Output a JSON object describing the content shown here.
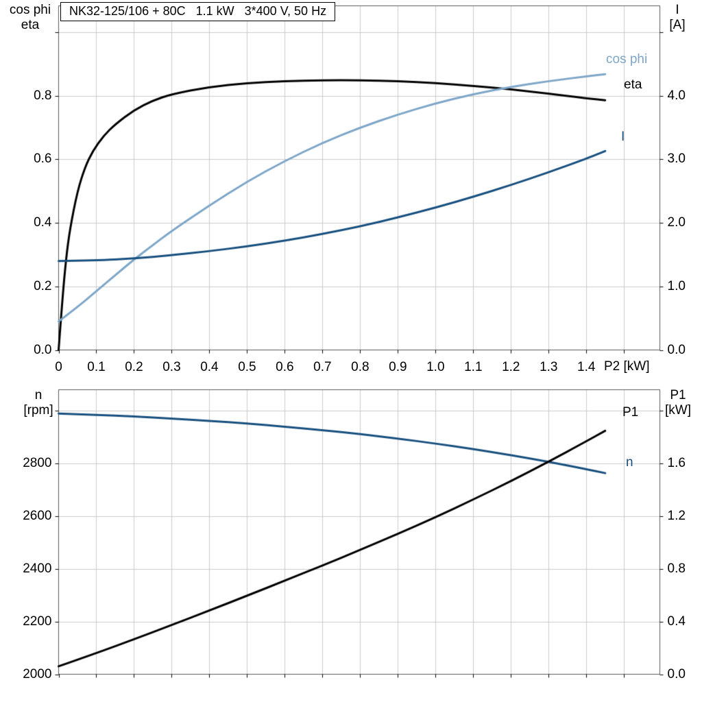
{
  "colors": {
    "background": "#ffffff",
    "grid": "#cccccc",
    "frame": "#595959",
    "tick": "#000000",
    "eta": "#000000",
    "cos_phi": "#7ea6c8",
    "current": "#174f7e",
    "speed": "#174f7e",
    "p1": "#000000"
  },
  "chart_data": [
    {
      "id": "top",
      "type": "line",
      "title": "NK32-125/106 + 80C   1.1 kW   3*400 V, 50 Hz",
      "x_axis": {
        "label": "P2 [kW]",
        "min": 0,
        "max": 1.595,
        "tick_values": [
          0,
          0.1,
          0.2,
          0.3,
          0.4,
          0.5,
          0.6,
          0.7,
          0.8,
          0.9,
          1.0,
          1.1,
          1.2,
          1.3,
          1.4
        ],
        "tick_labels": [
          "0",
          "0.1",
          "0.2",
          "0.3",
          "0.4",
          "0.5",
          "0.6",
          "0.7",
          "0.8",
          "0.9",
          "1.0",
          "1.1",
          "1.2",
          "1.3",
          "1.4"
        ],
        "tick_marks": [
          0,
          0.1,
          0.2,
          0.3,
          0.4,
          0.5,
          0.6,
          0.7,
          0.8,
          0.9,
          1.0,
          1.1,
          1.2,
          1.3,
          1.4,
          1.5
        ],
        "grid": [
          0.1,
          0.2,
          0.3,
          0.4,
          0.5,
          0.6,
          0.7,
          0.8,
          0.9,
          1.0,
          1.1,
          1.2,
          1.3,
          1.4,
          1.5
        ]
      },
      "left_axis": {
        "title_lines": [
          "cos phi",
          "eta"
        ],
        "min": 0,
        "max": 1.083,
        "tick_values": [
          0,
          0.2,
          0.4,
          0.6,
          0.8
        ],
        "tick_labels": [
          "0.0",
          "0.2",
          "0.4",
          "0.6",
          "0.8"
        ],
        "tick_marks": [
          0,
          0.2,
          0.4,
          0.6,
          0.8,
          1.0
        ],
        "grid": [
          0.2,
          0.4,
          0.6,
          0.8,
          1.0
        ]
      },
      "right_axis": {
        "title_lines": [
          "I",
          "[A]"
        ],
        "min": 0,
        "max": 5.415,
        "tick_values": [
          0,
          1,
          2,
          3,
          4
        ],
        "tick_labels": [
          "0.0",
          "1.0",
          "2.0",
          "3.0",
          "4.0"
        ],
        "tick_marks": [
          0,
          1,
          2,
          3,
          4,
          5
        ]
      },
      "series": [
        {
          "name": "eta",
          "axis": "left",
          "color": "eta",
          "x": [
            0,
            0.01,
            0.02,
            0.03,
            0.05,
            0.07,
            0.09,
            0.12,
            0.15,
            0.2,
            0.25,
            0.3,
            0.4,
            0.5,
            0.6,
            0.7,
            0.8,
            0.9,
            1.0,
            1.1,
            1.2,
            1.3,
            1.4,
            1.45
          ],
          "y": [
            0,
            0.16,
            0.29,
            0.38,
            0.5,
            0.575,
            0.625,
            0.675,
            0.71,
            0.755,
            0.785,
            0.805,
            0.828,
            0.84,
            0.846,
            0.849,
            0.849,
            0.846,
            0.84,
            0.831,
            0.82,
            0.807,
            0.792,
            0.786
          ]
        },
        {
          "name": "cos phi",
          "axis": "left",
          "color": "cos_phi",
          "x": [
            0,
            0.05,
            0.1,
            0.15,
            0.2,
            0.25,
            0.3,
            0.4,
            0.5,
            0.6,
            0.7,
            0.8,
            0.9,
            1.0,
            1.1,
            1.2,
            1.3,
            1.4,
            1.45
          ],
          "y": [
            0.09,
            0.135,
            0.185,
            0.235,
            0.285,
            0.33,
            0.375,
            0.455,
            0.53,
            0.595,
            0.652,
            0.7,
            0.741,
            0.776,
            0.805,
            0.828,
            0.846,
            0.861,
            0.868
          ]
        },
        {
          "name": "I",
          "axis": "right",
          "color": "current",
          "x": [
            0,
            0.1,
            0.2,
            0.3,
            0.4,
            0.5,
            0.6,
            0.7,
            0.8,
            0.9,
            1.0,
            1.1,
            1.2,
            1.3,
            1.4,
            1.45
          ],
          "y": [
            1.4,
            1.41,
            1.44,
            1.49,
            1.555,
            1.63,
            1.72,
            1.825,
            1.945,
            2.085,
            2.24,
            2.41,
            2.595,
            2.795,
            3.01,
            3.13
          ]
        }
      ]
    },
    {
      "id": "bottom",
      "type": "line",
      "x_axis": {
        "min": 0,
        "max": 1.595,
        "tick_marks": [
          0,
          0.1,
          0.2,
          0.3,
          0.4,
          0.5,
          0.6,
          0.7,
          0.8,
          0.9,
          1.0,
          1.1,
          1.2,
          1.3,
          1.4,
          1.5
        ],
        "grid": [
          0.1,
          0.2,
          0.3,
          0.4,
          0.5,
          0.6,
          0.7,
          0.8,
          0.9,
          1.0,
          1.1,
          1.2,
          1.3,
          1.4,
          1.5
        ]
      },
      "left_axis": {
        "title_lines": [
          "n",
          "[rpm]"
        ],
        "min": 2000,
        "max": 3078,
        "tick_values": [
          2000,
          2200,
          2400,
          2600,
          2800
        ],
        "tick_labels": [
          "2000",
          "2200",
          "2400",
          "2600",
          "2800"
        ],
        "tick_marks": [
          2000,
          2200,
          2400,
          2600,
          2800,
          3000
        ],
        "grid": [
          2200,
          2400,
          2600,
          2800,
          3000
        ]
      },
      "right_axis": {
        "title_lines": [
          "P1",
          "[kW]"
        ],
        "min": 0,
        "max": 2.156,
        "tick_values": [
          0,
          0.4,
          0.8,
          1.2,
          1.6
        ],
        "tick_labels": [
          "0.0",
          "0.4",
          "0.8",
          "1.2",
          "1.6"
        ],
        "tick_marks": [
          0,
          0.4,
          0.8,
          1.2,
          1.6,
          2.0
        ]
      },
      "series": [
        {
          "name": "n",
          "axis": "left",
          "color": "speed",
          "x": [
            0,
            0.1,
            0.2,
            0.3,
            0.4,
            0.5,
            0.6,
            0.7,
            0.8,
            0.9,
            1.0,
            1.1,
            1.2,
            1.3,
            1.4,
            1.45
          ],
          "y": [
            2988,
            2983,
            2977,
            2969,
            2960,
            2950,
            2938,
            2925,
            2910,
            2893,
            2874,
            2853,
            2830,
            2805,
            2777,
            2762
          ]
        },
        {
          "name": "P1",
          "axis": "right",
          "color": "p1",
          "x": [
            0,
            0.1,
            0.2,
            0.3,
            0.4,
            0.5,
            0.6,
            0.7,
            0.8,
            0.9,
            1.0,
            1.1,
            1.2,
            1.3,
            1.4,
            1.45
          ],
          "y": [
            0.06,
            0.16,
            0.265,
            0.373,
            0.483,
            0.595,
            0.709,
            0.824,
            0.942,
            1.064,
            1.19,
            1.324,
            1.463,
            1.611,
            1.765,
            1.845
          ]
        }
      ]
    }
  ]
}
